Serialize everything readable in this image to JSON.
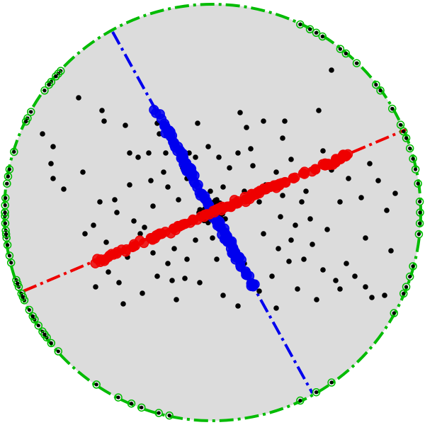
{
  "colors": {
    "background": "#ffffff",
    "disk_fill": "#dcdcdc",
    "boundary": "#00bb00",
    "line_a": "#0000ee",
    "line_b": "#ee0000",
    "scatter": "#000000"
  },
  "chart_data": {
    "type": "scatter",
    "title": "",
    "xlabel": "",
    "ylabel": "",
    "xlim": [
      -1,
      1
    ],
    "ylim": [
      -1,
      1
    ],
    "grid": false,
    "legend": "none",
    "boundary": {
      "shape": "circle",
      "center": [
        0,
        0
      ],
      "radius": 0.98,
      "style": "dash-dot",
      "color": "#00bb00"
    },
    "series": [
      {
        "kind": "boundary-points",
        "color": "#00bb00",
        "angles_deg": [
          137,
          138,
          139,
          141,
          142,
          144,
          151,
          153,
          154,
          163,
          168,
          170,
          172,
          176,
          178,
          180,
          181,
          183,
          185,
          187,
          189,
          194,
          199,
          201,
          203,
          205,
          211,
          213,
          215,
          217,
          222,
          236,
          243,
          247,
          250,
          255,
          258,
          295,
          300,
          305,
          331,
          337,
          339,
          342,
          345,
          354,
          357,
          0,
          3,
          8,
          12,
          15,
          18,
          21,
          23,
          25,
          30,
          36,
          38,
          46,
          50,
          52,
          58,
          60,
          62,
          65,
          180,
          186,
          192,
          200,
          204,
          208,
          210,
          216,
          219
        ]
      },
      {
        "kind": "line-fit",
        "style": "dash-dot",
        "color": "#0000ee",
        "line": {
          "from": [
            -0.47,
            0.85
          ],
          "to": [
            0.47,
            -0.85
          ]
        },
        "points": {
          "count": 140,
          "t_range": [
            -0.58,
            0.42
          ],
          "spread": 0.018
        }
      },
      {
        "kind": "line-fit",
        "style": "dash-dot",
        "color": "#ee0000",
        "line": {
          "from": [
            -0.89,
            -0.37
          ],
          "to": [
            0.91,
            0.39
          ]
        },
        "points": {
          "count": 140,
          "t_range": [
            -0.62,
            0.72
          ],
          "spread": 0.018
        }
      },
      {
        "kind": "scatter",
        "color": "#000000",
        "points": [
          [
            -0.63,
            0.54
          ],
          [
            -0.52,
            0.48
          ],
          [
            -0.51,
            0.43
          ],
          [
            -0.8,
            0.37
          ],
          [
            -0.75,
            0.31
          ],
          [
            -0.76,
            0.23
          ],
          [
            -0.75,
            0.16
          ],
          [
            -0.7,
            0.11
          ],
          [
            -0.61,
            0.19
          ],
          [
            -0.41,
            0.41
          ],
          [
            -0.26,
            0.42
          ],
          [
            -0.25,
            0.37
          ],
          [
            -0.19,
            0.34
          ],
          [
            -0.22,
            0.28
          ],
          [
            -0.3,
            0.28
          ],
          [
            -0.35,
            0.26
          ],
          [
            -0.46,
            0.06
          ],
          [
            -0.53,
            0.05
          ],
          [
            -0.56,
            -0.06
          ],
          [
            -0.6,
            -0.1
          ],
          [
            -0.45,
            0.0
          ],
          [
            -0.39,
            0.13
          ],
          [
            -0.29,
            0.15
          ],
          [
            -0.21,
            0.12
          ],
          [
            -0.28,
            0.03
          ],
          [
            -0.37,
            -0.04
          ],
          [
            -0.34,
            -0.1
          ],
          [
            -0.28,
            -0.19
          ],
          [
            -0.21,
            -0.24
          ],
          [
            -0.19,
            -0.32
          ],
          [
            -0.13,
            -0.31
          ],
          [
            -0.12,
            -0.22
          ],
          [
            -0.08,
            -0.13
          ],
          [
            -0.11,
            -0.05
          ],
          [
            -0.16,
            0.06
          ],
          [
            -0.12,
            0.16
          ],
          [
            -0.08,
            0.26
          ],
          [
            -0.02,
            0.31
          ],
          [
            0.03,
            0.26
          ],
          [
            0.08,
            0.21
          ],
          [
            0.12,
            0.28
          ],
          [
            0.18,
            0.3
          ],
          [
            0.16,
            0.4
          ],
          [
            0.24,
            0.43
          ],
          [
            0.33,
            0.35
          ],
          [
            0.37,
            0.25
          ],
          [
            0.3,
            0.19
          ],
          [
            0.25,
            0.13
          ],
          [
            0.15,
            0.1
          ],
          [
            0.22,
            0.05
          ],
          [
            0.33,
            0.08
          ],
          [
            0.42,
            0.05
          ],
          [
            0.46,
            -0.03
          ],
          [
            0.39,
            -0.06
          ],
          [
            0.32,
            -0.02
          ],
          [
            0.24,
            -0.1
          ],
          [
            0.31,
            -0.17
          ],
          [
            0.36,
            -0.23
          ],
          [
            0.43,
            -0.22
          ],
          [
            0.52,
            -0.27
          ],
          [
            0.58,
            -0.32
          ],
          [
            0.6,
            -0.36
          ],
          [
            0.67,
            -0.3
          ],
          [
            0.72,
            -0.35
          ],
          [
            0.75,
            -0.4
          ],
          [
            0.81,
            -0.39
          ],
          [
            0.49,
            -0.41
          ],
          [
            0.4,
            -0.36
          ],
          [
            0.22,
            -0.37
          ],
          [
            0.15,
            -0.24
          ],
          [
            0.1,
            -0.16
          ],
          [
            0.0,
            -0.12
          ],
          [
            -0.05,
            -0.02
          ],
          [
            0.02,
            0.06
          ],
          [
            0.05,
            0.12
          ],
          [
            -0.33,
            -0.38
          ],
          [
            -0.42,
            -0.43
          ],
          [
            -0.44,
            -0.33
          ],
          [
            -0.39,
            0.28
          ],
          [
            0.84,
            -0.18
          ],
          [
            0.82,
            0.01
          ],
          [
            0.86,
            0.09
          ],
          [
            0.78,
            0.15
          ],
          [
            0.74,
            0.23
          ],
          [
            0.72,
            -0.12
          ],
          [
            0.64,
            0.16
          ],
          [
            0.56,
            0.2
          ],
          [
            0.52,
            0.29
          ],
          [
            0.5,
            0.48
          ],
          [
            0.56,
            0.67
          ],
          [
            0.13,
            0.47
          ],
          [
            -0.55,
            -0.35
          ],
          [
            -0.49,
            -0.28
          ],
          [
            -0.17,
            -0.41
          ],
          [
            -0.06,
            -0.33
          ],
          [
            0.05,
            -0.39
          ],
          [
            0.12,
            -0.44
          ],
          [
            0.28,
            -0.3
          ],
          [
            0.47,
            -0.15
          ],
          [
            -0.14,
            0.21
          ],
          [
            -0.23,
            0.19
          ],
          [
            -0.32,
            -0.07
          ],
          [
            0.09,
            0.04
          ],
          [
            0.06,
            -0.03
          ],
          [
            -0.01,
            0.1
          ],
          [
            0.19,
            0.22
          ],
          [
            0.02,
            -0.22
          ],
          [
            -0.07,
            0.42
          ],
          [
            0.37,
            -0.13
          ],
          [
            0.3,
            -0.45
          ],
          [
            0.63,
            -0.24
          ],
          [
            0.7,
            0.07
          ],
          [
            0.44,
            0.19
          ],
          [
            0.34,
            0.43
          ],
          [
            -0.11,
            0.28
          ],
          [
            -0.18,
            -0.17
          ],
          [
            -0.26,
            -0.3
          ],
          [
            -0.4,
            -0.21
          ],
          [
            -0.5,
            -0.14
          ],
          [
            0.44,
            0.1
          ],
          [
            0.54,
            -0.08
          ],
          [
            0.6,
            0.05
          ]
        ]
      }
    ]
  }
}
